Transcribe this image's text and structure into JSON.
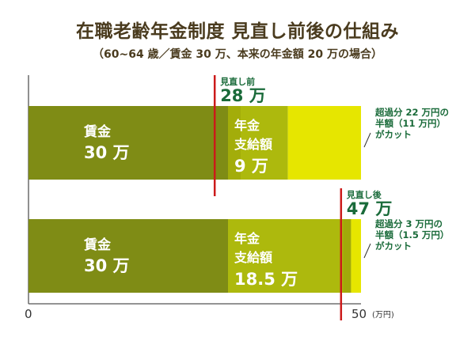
{
  "title": "在職老齢年金制度 見直し前後の仕組み",
  "subtitle": "（60~64 歳／賃金 30 万、本来の年金額 20 万の場合）",
  "chart_data": {
    "type": "bar",
    "orientation": "horizontal",
    "stacked": true,
    "xlim": [
      0,
      50
    ],
    "x_ticks": [
      "0",
      "50"
    ],
    "x_unit": "(万円)",
    "colors": {
      "wage": "#7f8c15",
      "pension": "#adb90d",
      "pension_dark": "#9ba40a",
      "cut": "#e6e600",
      "ref_line": "#cc1a1a",
      "label_green": "#1a6b3a"
    },
    "bars": [
      {
        "segments": [
          {
            "value": 30,
            "label_line1": "賃金",
            "label_line2": "30 万"
          },
          {
            "value": 9,
            "label_line1": "年金",
            "label_line2": "支給額",
            "label_line3": "9 万"
          },
          {
            "value": 11
          }
        ],
        "reference": {
          "value": 28,
          "label_small": "見直し前",
          "label_big": "28 万"
        },
        "note": [
          "超過分 22 万円の",
          "半額（11 万円）",
          "がカット"
        ]
      },
      {
        "segments": [
          {
            "value": 30,
            "label_line1": "賃金",
            "label_line2": "30 万"
          },
          {
            "value": 18.5,
            "label_line1": "年金",
            "label_line2": "支給額",
            "label_line3": "18.5 万"
          },
          {
            "value": 1.5
          }
        ],
        "reference": {
          "value": 47,
          "label_small": "見直し後",
          "label_big": "47 万"
        },
        "note": [
          "超過分 3 万円の",
          "半額（1.5 万円）",
          "がカット"
        ]
      }
    ]
  }
}
